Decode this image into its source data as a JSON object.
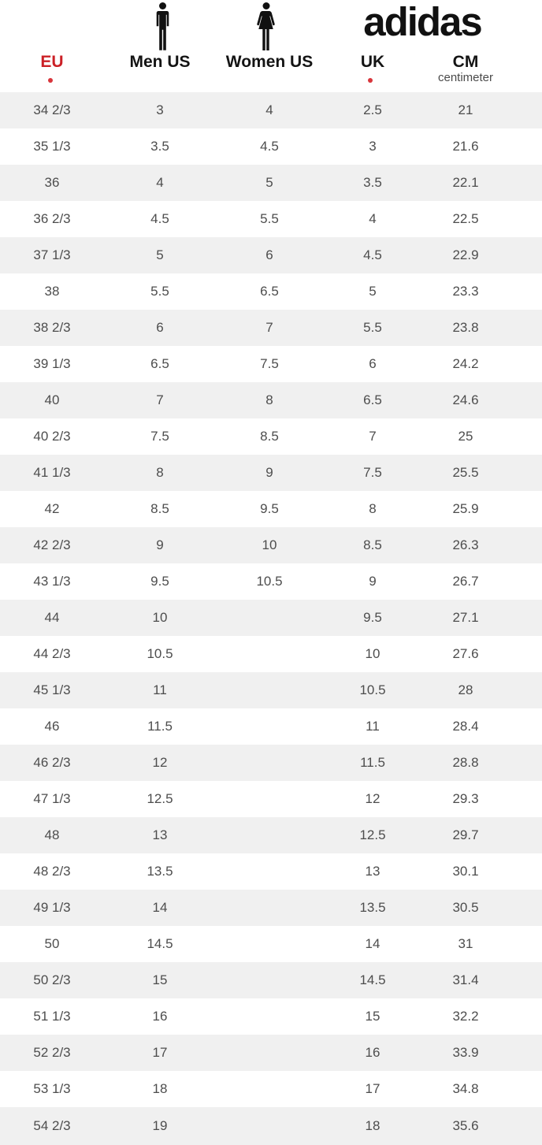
{
  "brand": "adidas",
  "header": {
    "columns": [
      {
        "label": "EU",
        "footnote_dot": true
      },
      {
        "label": "Men US",
        "icon": "man-icon"
      },
      {
        "label": "Women US",
        "icon": "woman-icon"
      },
      {
        "label": "UK",
        "footnote_dot": true
      },
      {
        "label": "CM",
        "sublabel": "centimeter"
      }
    ]
  },
  "colors": {
    "accent_red": "#cb2026",
    "footnote_dot_red": "#d8363c",
    "row_alt_gray": "#f0f0f0",
    "row_white": "#ffffff",
    "body_text": "#4d4d4d",
    "header_text": "#141414"
  },
  "chart_data": {
    "type": "table",
    "columns": [
      "EU",
      "Men US",
      "Women US",
      "UK",
      "CM"
    ],
    "rows": [
      [
        "34 2/3",
        "3",
        "4",
        "2.5",
        "21"
      ],
      [
        "35 1/3",
        "3.5",
        "4.5",
        "3",
        "21.6"
      ],
      [
        "36",
        "4",
        "5",
        "3.5",
        "22.1"
      ],
      [
        "36 2/3",
        "4.5",
        "5.5",
        "4",
        "22.5"
      ],
      [
        "37 1/3",
        "5",
        "6",
        "4.5",
        "22.9"
      ],
      [
        "38",
        "5.5",
        "6.5",
        "5",
        "23.3"
      ],
      [
        "38 2/3",
        "6",
        "7",
        "5.5",
        "23.8"
      ],
      [
        "39 1/3",
        "6.5",
        "7.5",
        "6",
        "24.2"
      ],
      [
        "40",
        "7",
        "8",
        "6.5",
        "24.6"
      ],
      [
        "40 2/3",
        "7.5",
        "8.5",
        "7",
        "25"
      ],
      [
        "41 1/3",
        "8",
        "9",
        "7.5",
        "25.5"
      ],
      [
        "42",
        "8.5",
        "9.5",
        "8",
        "25.9"
      ],
      [
        "42 2/3",
        "9",
        "10",
        "8.5",
        "26.3"
      ],
      [
        "43 1/3",
        "9.5",
        "10.5",
        "9",
        "26.7"
      ],
      [
        "44",
        "10",
        "",
        "9.5",
        "27.1"
      ],
      [
        "44 2/3",
        "10.5",
        "",
        "10",
        "27.6"
      ],
      [
        "45 1/3",
        "11",
        "",
        "10.5",
        "28"
      ],
      [
        "46",
        "11.5",
        "",
        "11",
        "28.4"
      ],
      [
        "46 2/3",
        "12",
        "",
        "11.5",
        "28.8"
      ],
      [
        "47 1/3",
        "12.5",
        "",
        "12",
        "29.3"
      ],
      [
        "48",
        "13",
        "",
        "12.5",
        "29.7"
      ],
      [
        "48 2/3",
        "13.5",
        "",
        "13",
        "30.1"
      ],
      [
        "49 1/3",
        "14",
        "",
        "13.5",
        "30.5"
      ],
      [
        "50",
        "14.5",
        "",
        "14",
        "31"
      ],
      [
        "50 2/3",
        "15",
        "",
        "14.5",
        "31.4"
      ],
      [
        "51 1/3",
        "16",
        "",
        "15",
        "32.2"
      ],
      [
        "52 2/3",
        "17",
        "",
        "16",
        "33.9"
      ],
      [
        "53 1/3",
        "18",
        "",
        "17",
        "34.8"
      ],
      [
        "54 2/3",
        "19",
        "",
        "18",
        "35.6"
      ]
    ]
  }
}
